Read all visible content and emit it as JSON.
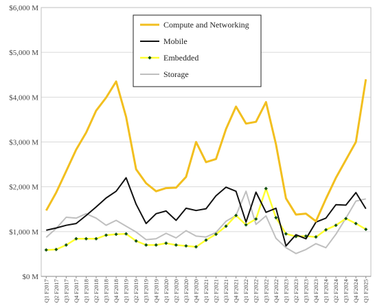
{
  "chart_data": {
    "type": "line",
    "title": "",
    "xlabel": "",
    "ylabel": "",
    "ylim": [
      0,
      6000
    ],
    "y_ticks": [
      "$0 M",
      "$1,000 M",
      "$2,000 M",
      "$3,000 M",
      "$4,000 M",
      "$5,000 M",
      "$6,000 M"
    ],
    "grid": true,
    "legend_position": "top-center",
    "categories": [
      "Q1 F2017",
      "Q2 F2017",
      "Q3 F2017",
      "Q4 F2017",
      "Q1 F2018",
      "Q2 F2018",
      "Q3 F2018",
      "Q4 F2018",
      "Q1 F2019",
      "Q2 F2019",
      "Q3 F2019",
      "Q4 F2019",
      "Q1 F2020",
      "Q2 F2020",
      "Q3 F2020",
      "Q4 F2020",
      "Q1 F2021",
      "Q2 F2021",
      "Q3 F2021",
      "Q4 F2021",
      "Q1 F2022",
      "Q2 F2022",
      "Q3 F2022",
      "Q4 F2022",
      "Q1 F2023",
      "Q2 F2023",
      "Q3 F2023",
      "Q4 F2023",
      "Q1 F2024",
      "Q2 F2024",
      "Q3 F2024",
      "Q4 F2024",
      "Q1 F2025"
    ],
    "series": [
      {
        "name": "Compute and Networking",
        "color": "#F2BF1F",
        "values": [
          1470,
          1870,
          2350,
          2830,
          3210,
          3700,
          3990,
          4350,
          3560,
          2390,
          2080,
          1900,
          1970,
          1980,
          2220,
          3000,
          2550,
          2620,
          3290,
          3790,
          3410,
          3450,
          3890,
          2950,
          1740,
          1380,
          1400,
          1230,
          1730,
          2200,
          2600,
          3000,
          4400
        ]
      },
      {
        "name": "Mobile",
        "color": "#111111",
        "values": [
          1030,
          1080,
          1140,
          1180,
          1360,
          1550,
          1750,
          1900,
          2200,
          1610,
          1180,
          1400,
          1460,
          1250,
          1520,
          1470,
          1510,
          1800,
          1990,
          1900,
          1210,
          1880,
          1430,
          1520,
          680,
          930,
          840,
          1210,
          1300,
          1600,
          1590,
          1870,
          1510
        ]
      },
      {
        "name": "Embedded",
        "color": "#FFFF33",
        "marker_color": "#145214",
        "values": [
          590,
          600,
          700,
          840,
          840,
          840,
          920,
          940,
          950,
          790,
          700,
          700,
          740,
          700,
          680,
          660,
          810,
          940,
          1120,
          1360,
          1150,
          1280,
          1960,
          1310,
          950,
          890,
          900,
          880,
          1040,
          1140,
          1290,
          1180,
          1050
        ]
      },
      {
        "name": "Storage",
        "color": "#BFBFBF",
        "values": [
          870,
          1070,
          1320,
          1300,
          1400,
          1300,
          1140,
          1250,
          1120,
          990,
          820,
          840,
          960,
          860,
          1020,
          900,
          880,
          980,
          1230,
          1360,
          1900,
          1160,
          1350,
          850,
          640,
          510,
          600,
          730,
          640,
          940,
          1300,
          1680,
          1730
        ]
      }
    ]
  }
}
